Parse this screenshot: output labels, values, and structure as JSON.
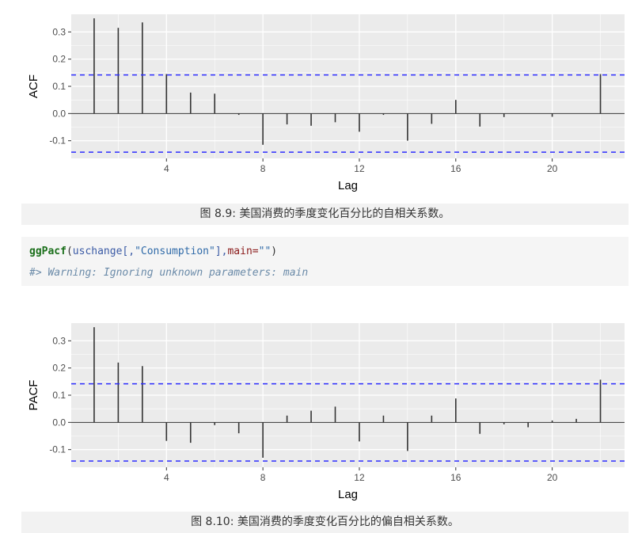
{
  "charts": [
    {
      "caption": "图 8.9: 美国消费的季度变化百分比的自相关系数。"
    },
    {
      "caption": "图 8.10: 美国消费的季度变化百分比的偏自相关系数。"
    }
  ],
  "code": {
    "fn": "ggPacf",
    "paren_open": "(",
    "arg_obj": "uschange[,",
    "arg_str": "\"Consumption\"",
    "comma": "],",
    "param": "main=",
    "param_val": "\"\"",
    "paren_close": ")",
    "output": "#> Warning: Ignoring unknown parameters: main"
  },
  "colors": {
    "panel_bg": "#ebebeb",
    "grid": "#ffffff",
    "bar": "#333333",
    "ci_line": "#2d2dff"
  },
  "chart_data": [
    {
      "type": "bar",
      "xlabel": "Lag",
      "ylabel": "ACF",
      "x": [
        1,
        2,
        3,
        4,
        5,
        6,
        7,
        8,
        9,
        10,
        11,
        12,
        13,
        14,
        15,
        16,
        17,
        18,
        19,
        20,
        21,
        22
      ],
      "values": [
        0.35,
        0.315,
        0.335,
        0.145,
        0.077,
        0.073,
        -0.005,
        -0.115,
        -0.04,
        -0.045,
        -0.032,
        -0.067,
        -0.005,
        -0.1,
        -0.038,
        0.05,
        -0.048,
        -0.013,
        0.0,
        -0.012,
        0.0,
        0.145
      ],
      "ci": 0.142,
      "xlim": [
        0.05,
        23.0
      ],
      "ylim": [
        -0.165,
        0.365
      ],
      "xticks": [
        4,
        8,
        12,
        16,
        20
      ],
      "yticks": [
        -0.1,
        0.0,
        0.1,
        0.2,
        0.3
      ],
      "ytick_labels": [
        "-0.1",
        "0.0",
        "0.1",
        "0.2",
        "0.3"
      ],
      "grid": true
    },
    {
      "type": "bar",
      "xlabel": "Lag",
      "ylabel": "PACF",
      "x": [
        1,
        2,
        3,
        4,
        5,
        6,
        7,
        8,
        9,
        10,
        11,
        12,
        13,
        14,
        15,
        16,
        17,
        18,
        19,
        20,
        21,
        22
      ],
      "values": [
        0.35,
        0.22,
        0.207,
        -0.068,
        -0.075,
        -0.01,
        -0.04,
        -0.13,
        0.025,
        0.043,
        0.058,
        -0.07,
        0.025,
        -0.105,
        0.025,
        0.088,
        -0.042,
        -0.007,
        -0.018,
        0.007,
        0.013,
        0.157
      ],
      "ci": 0.142,
      "xlim": [
        0.05,
        23.0
      ],
      "ylim": [
        -0.165,
        0.365
      ],
      "xticks": [
        4,
        8,
        12,
        16,
        20
      ],
      "yticks": [
        -0.1,
        0.0,
        0.1,
        0.2,
        0.3
      ],
      "ytick_labels": [
        "-0.1",
        "0.0",
        "0.1",
        "0.2",
        "0.3"
      ],
      "grid": true
    }
  ]
}
